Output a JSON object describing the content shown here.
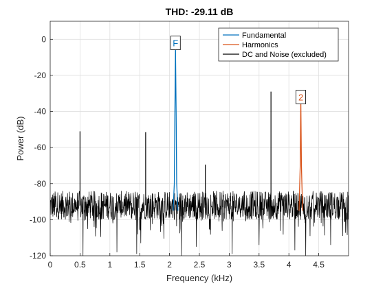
{
  "chart_data": {
    "type": "line",
    "title": "THD: -29.11 dB",
    "xlabel": "Frequency (kHz)",
    "ylabel": "Power (dB)",
    "xlim": [
      0,
      5
    ],
    "ylim": [
      -120,
      10
    ],
    "xticks": [
      0,
      0.5,
      1,
      1.5,
      2,
      2.5,
      3,
      3.5,
      4,
      4.5
    ],
    "xtick_labels": [
      "0",
      "0.5",
      "1",
      "1.5",
      "2",
      "2.5",
      "3",
      "3.5",
      "4",
      "4.5"
    ],
    "yticks": [
      -120,
      -100,
      -80,
      -60,
      -40,
      -20,
      0
    ],
    "ytick_labels": [
      "-120",
      "-100",
      "-80",
      "-60",
      "-40",
      "-20",
      "0"
    ],
    "grid": true,
    "legend_position": "top-right",
    "noise_floor_db": -92,
    "noise_floor_spread_db": 8,
    "series": [
      {
        "name": "Fundamental",
        "color": "#0072BD",
        "x": [
          2.06,
          2.08,
          2.09,
          2.1,
          2.11,
          2.12,
          2.14
        ],
        "y": [
          -95,
          -80,
          -40,
          -5,
          -40,
          -80,
          -95
        ]
      },
      {
        "name": "Harmonics",
        "color": "#D95319",
        "x": [
          4.17,
          4.19,
          4.2,
          4.21,
          4.23
        ],
        "y": [
          -95,
          -70,
          -34,
          -70,
          -95
        ]
      },
      {
        "name": "DC and Noise (excluded)",
        "color": "#000000",
        "spurs": [
          {
            "x": 0.5,
            "y": -51
          },
          {
            "x": 1.6,
            "y": -51.5
          },
          {
            "x": 2.6,
            "y": -69.5
          },
          {
            "x": 3.7,
            "y": -29
          },
          {
            "x": 4.7,
            "y": -85
          }
        ],
        "dips": [
          {
            "x": 0.55,
            "y": -120
          },
          {
            "x": 1.12,
            "y": -118
          },
          {
            "x": 1.45,
            "y": -119
          },
          {
            "x": 1.52,
            "y": -113
          },
          {
            "x": 2.2,
            "y": -120
          },
          {
            "x": 2.45,
            "y": -115
          },
          {
            "x": 3.05,
            "y": -119
          },
          {
            "x": 3.5,
            "y": -114
          },
          {
            "x": 4.1,
            "y": -117
          },
          {
            "x": 4.28,
            "y": -120
          },
          {
            "x": 4.7,
            "y": -114
          },
          {
            "x": 4.9,
            "y": -109
          }
        ]
      }
    ],
    "annotations": [
      {
        "label": "F",
        "x": 2.1,
        "y": -2,
        "color": "#0072BD"
      },
      {
        "label": "2",
        "x": 4.2,
        "y": -32,
        "color": "#D95319"
      }
    ]
  }
}
